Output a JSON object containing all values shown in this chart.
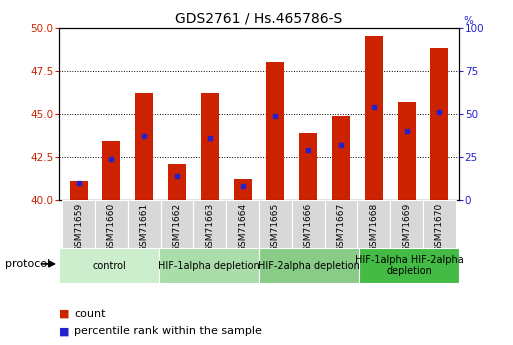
{
  "title": "GDS2761 / Hs.465786-S",
  "samples": [
    "GSM71659",
    "GSM71660",
    "GSM71661",
    "GSM71662",
    "GSM71663",
    "GSM71664",
    "GSM71665",
    "GSM71666",
    "GSM71667",
    "GSM71668",
    "GSM71669",
    "GSM71670"
  ],
  "count_values": [
    41.1,
    43.4,
    46.2,
    42.1,
    46.2,
    41.2,
    48.0,
    43.9,
    44.9,
    49.5,
    45.7,
    48.8
  ],
  "percentile_values": [
    10,
    24,
    37,
    14,
    36,
    8,
    49,
    29,
    32,
    54,
    40,
    51
  ],
  "ylim_left": [
    40,
    50
  ],
  "ylim_right": [
    0,
    100
  ],
  "yticks_left": [
    40,
    42.5,
    45,
    47.5,
    50
  ],
  "yticks_right": [
    0,
    25,
    50,
    75,
    100
  ],
  "bar_color": "#cc2200",
  "marker_color": "#2222cc",
  "bar_width": 0.55,
  "groups": [
    {
      "label": "control",
      "span": [
        0,
        3
      ],
      "color": "#cceecc"
    },
    {
      "label": "HIF-1alpha depletion",
      "span": [
        3,
        6
      ],
      "color": "#aaddaa"
    },
    {
      "label": "HIF-2alpha depletion",
      "span": [
        6,
        9
      ],
      "color": "#88cc88"
    },
    {
      "label": "HIF-1alpha HIF-2alpha\ndepletion",
      "span": [
        9,
        12
      ],
      "color": "#44bb44"
    }
  ],
  "protocol_label": "protocol",
  "legend_items": [
    {
      "label": "count",
      "color": "#cc2200"
    },
    {
      "label": "percentile rank within the sample",
      "color": "#2222cc"
    }
  ],
  "plot_bg_color": "#ffffff",
  "xtick_bg_color": "#d8d8d8",
  "title_fontsize": 10,
  "axis_fontsize": 7.5,
  "label_fontsize": 7.5,
  "group_label_fontsize": 7,
  "legend_fontsize": 8
}
